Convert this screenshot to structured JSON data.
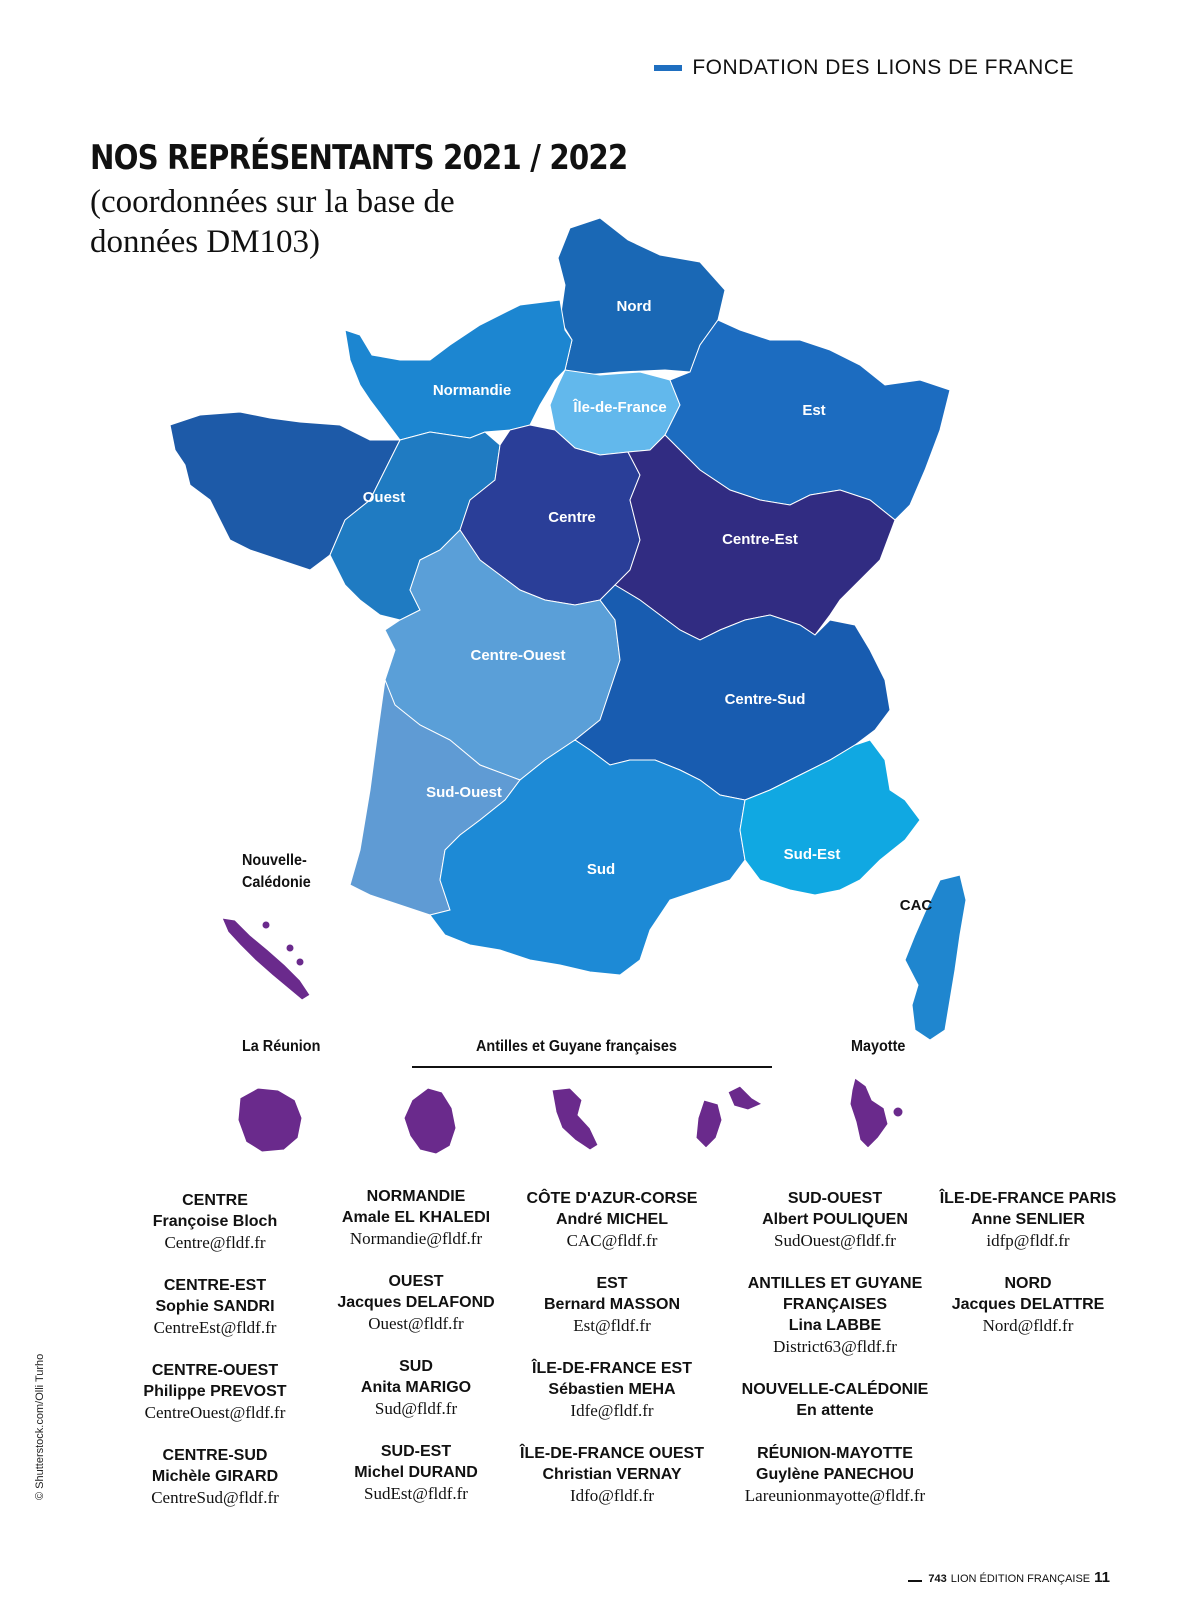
{
  "header": {
    "section_title": "FONDATION DES LIONS DE FRANCE"
  },
  "title": "NOS REPRÉSENTANTS 2021 / 2022",
  "subtitle": "(coordonnées sur la base de données DM103)",
  "colors": {
    "nord": "#1a68b5",
    "normandie": "#1c86d1",
    "ile_de_france": "#62b8ec",
    "est": "#1c6cc0",
    "ouest": "#1d5aa8",
    "ouest_inner": "#1f7bc2",
    "centre": "#2a3e98",
    "centre_est": "#312c82",
    "centre_ouest": "#5a9fd8",
    "centre_sud": "#185cb0",
    "sud_ouest": "#5f9bd4",
    "sud": "#1d8ad6",
    "sud_est": "#10a8e2",
    "cac": "#1f86cf",
    "overseas": "#6a2a8c"
  },
  "map_regions": {
    "nord": "Nord",
    "normandie": "Normandie",
    "ile_de_france": "Île-de-France",
    "est": "Est",
    "ouest": "Ouest",
    "centre": "Centre",
    "centre_est": "Centre-Est",
    "centre_ouest": "Centre-Ouest",
    "centre_sud": "Centre-Sud",
    "sud_ouest": "Sud-Ouest",
    "sud": "Sud",
    "sud_est": "Sud-Est",
    "cac": "CAC"
  },
  "territories": {
    "nouvelle_caledonie_line1": "Nouvelle-",
    "nouvelle_caledonie_line2": "Calédonie",
    "reunion": "La Réunion",
    "antilles": "Antilles et Guyane françaises",
    "mayotte": "Mayotte"
  },
  "contacts": {
    "col1": [
      {
        "region": "CENTRE",
        "person": "Françoise Bloch",
        "email": "Centre@fldf.fr"
      },
      {
        "region": "CENTRE-EST",
        "person": "Sophie SANDRI",
        "email": "CentreEst@fldf.fr"
      },
      {
        "region": "CENTRE-OUEST",
        "person": "Philippe PREVOST",
        "email": "CentreOuest@fldf.fr"
      },
      {
        "region": "CENTRE-SUD",
        "person": "Michèle GIRARD",
        "email": "CentreSud@fldf.fr"
      }
    ],
    "col2": [
      {
        "region": "NORMANDIE",
        "person": "Amale EL KHALEDI",
        "email": "Normandie@fldf.fr"
      },
      {
        "region": "OUEST",
        "person": "Jacques DELAFOND",
        "email": "Ouest@fldf.fr"
      },
      {
        "region": "SUD",
        "person": "Anita MARIGO",
        "email": "Sud@fldf.fr"
      },
      {
        "region": "SUD-EST",
        "person": "Michel DURAND",
        "email": "SudEst@fldf.fr"
      }
    ],
    "col3": [
      {
        "region": "CÔTE D'AZUR-CORSE",
        "person": "André MICHEL",
        "email": "CAC@fldf.fr"
      },
      {
        "region": "EST",
        "person": "Bernard MASSON",
        "email": "Est@fldf.fr"
      },
      {
        "region": "ÎLE-DE-FRANCE EST",
        "person": "Sébastien MEHA",
        "email": "Idfe@fldf.fr"
      },
      {
        "region": "ÎLE-DE-FRANCE OUEST",
        "person": "Christian VERNAY",
        "email": "Idfo@fldf.fr"
      }
    ],
    "col4": [
      {
        "region": "SUD-OUEST",
        "person": "Albert POULIQUEN",
        "email": "SudOuest@fldf.fr"
      },
      {
        "region": "ANTILLES ET GUYANE",
        "region2": "FRANÇAISES",
        "person": "Lina LABBE",
        "email": "District63@fldf.fr"
      },
      {
        "region": "NOUVELLE-CALÉDONIE",
        "person": "En attente",
        "email": ""
      },
      {
        "region": "RÉUNION-MAYOTTE",
        "person": "Guylène PANECHOU",
        "email": "Lareunionmayotte@fldf.fr"
      }
    ],
    "col5": [
      {
        "region": "ÎLE-DE-FRANCE PARIS",
        "person": "Anne SENLIER",
        "email": "idfp@fldf.fr"
      },
      {
        "region": "NORD",
        "person": "Jacques DELATTRE",
        "email": "Nord@fldf.fr"
      }
    ]
  },
  "credit": "© Shutterstock.com/Olli Turho",
  "footer": {
    "issue": "743",
    "publication": "LION ÉDITION FRANÇAISE",
    "page": "11"
  }
}
